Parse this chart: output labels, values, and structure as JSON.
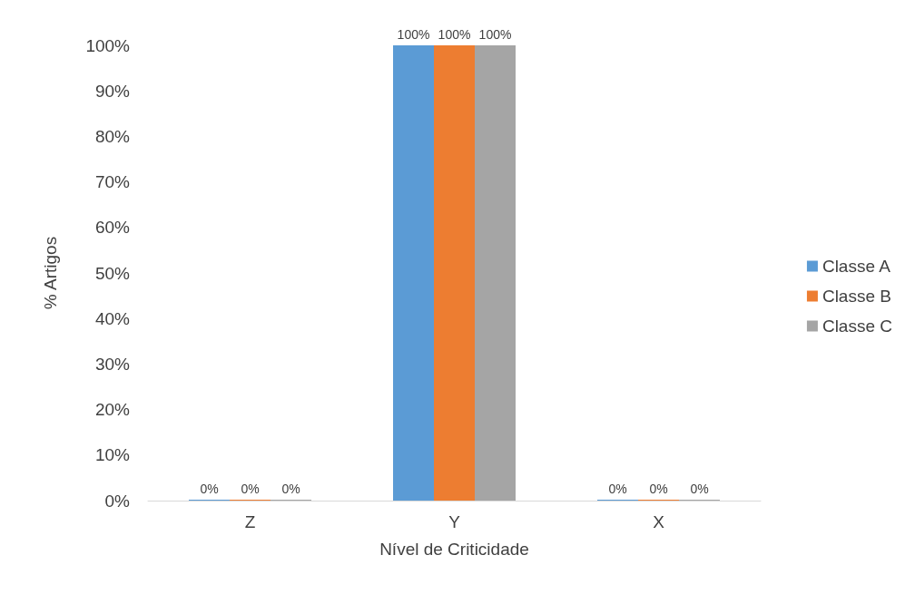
{
  "chart_data": {
    "type": "bar",
    "xlabel": "Nível de Criticidade",
    "ylabel": "% Artigos",
    "categories": [
      "Z",
      "Y",
      "X"
    ],
    "series": [
      {
        "name": "Classe A",
        "color": "#5b9bd5",
        "values": [
          0,
          100,
          0
        ],
        "value_labels": [
          "0%",
          "100%",
          "0%"
        ]
      },
      {
        "name": "Classe B",
        "color": "#ed7d31",
        "values": [
          0,
          100,
          0
        ],
        "value_labels": [
          "0%",
          "100%",
          "0%"
        ]
      },
      {
        "name": "Classe C",
        "color": "#a5a5a5",
        "values": [
          0,
          100,
          0
        ],
        "value_labels": [
          "0%",
          "100%",
          "0%"
        ]
      }
    ],
    "ylim": [
      0,
      100
    ],
    "yticks": [
      {
        "value": 0,
        "label": "0%"
      },
      {
        "value": 10,
        "label": "10%"
      },
      {
        "value": 20,
        "label": "20%"
      },
      {
        "value": 30,
        "label": "30%"
      },
      {
        "value": 40,
        "label": "40%"
      },
      {
        "value": 50,
        "label": "50%"
      },
      {
        "value": 60,
        "label": "60%"
      },
      {
        "value": 70,
        "label": "70%"
      },
      {
        "value": 80,
        "label": "80%"
      },
      {
        "value": 90,
        "label": "90%"
      },
      {
        "value": 100,
        "label": "100%"
      }
    ],
    "grid": false,
    "legend": "right"
  }
}
